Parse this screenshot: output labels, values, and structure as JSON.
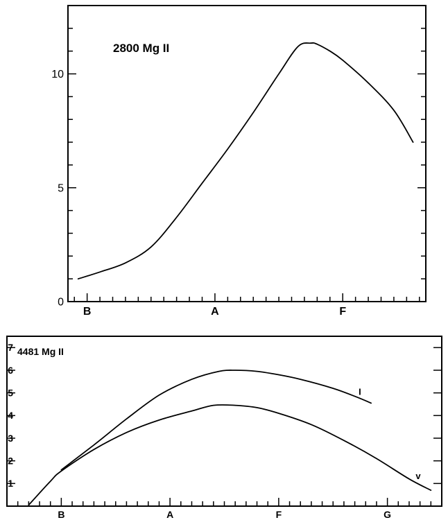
{
  "chart_data": [
    {
      "type": "line",
      "title": "2800 Mg II",
      "xlabel": "",
      "ylabel": "",
      "x_tick_labels": [
        "B",
        "A",
        "F"
      ],
      "x_tick_positions": [
        0,
        1,
        2
      ],
      "xlim": [
        -0.15,
        2.65
      ],
      "ylim": [
        0,
        13
      ],
      "y_ticks": [
        0,
        5,
        10
      ],
      "y_tick_labels": [
        "0",
        "5",
        "10"
      ],
      "series": [
        {
          "name": "",
          "x": [
            -0.07,
            0.1,
            0.3,
            0.5,
            0.7,
            0.9,
            1.1,
            1.3,
            1.5,
            1.65,
            1.75,
            1.8,
            1.9,
            2.0,
            2.2,
            2.4,
            2.55
          ],
          "y": [
            1.0,
            1.3,
            1.7,
            2.4,
            3.7,
            5.2,
            6.7,
            8.3,
            10.0,
            11.2,
            11.35,
            11.3,
            11.0,
            10.6,
            9.6,
            8.4,
            7.0
          ]
        }
      ]
    },
    {
      "type": "line",
      "title": "4481 Mg II",
      "xlabel": "",
      "ylabel": "",
      "x_tick_labels": [
        "B",
        "A",
        "F",
        "G"
      ],
      "x_tick_positions": [
        0,
        1,
        2,
        3
      ],
      "xlim": [
        -0.5,
        3.5
      ],
      "ylim": [
        0,
        7.5
      ],
      "y_ticks": [
        1,
        2,
        3,
        4,
        5,
        6,
        7
      ],
      "y_tick_labels": [
        "1",
        "2",
        "3",
        "4",
        "5",
        "6",
        "7"
      ],
      "series": [
        {
          "name": "I",
          "x": [
            0.0,
            0.3,
            0.6,
            0.9,
            1.2,
            1.45,
            1.6,
            1.8,
            2.0,
            2.2,
            2.5,
            2.7,
            2.85
          ],
          "y": [
            1.6,
            2.7,
            3.85,
            4.9,
            5.6,
            5.95,
            6.0,
            5.95,
            5.8,
            5.6,
            5.2,
            4.85,
            4.55
          ]
        },
        {
          "name": "v",
          "x": [
            -0.3,
            -0.1,
            0.0,
            0.3,
            0.6,
            0.9,
            1.2,
            1.4,
            1.6,
            1.8,
            2.0,
            2.3,
            2.6,
            2.9,
            3.2,
            3.4
          ],
          "y": [
            0.05,
            1.1,
            1.55,
            2.5,
            3.25,
            3.8,
            4.2,
            4.45,
            4.45,
            4.35,
            4.1,
            3.6,
            2.9,
            2.1,
            1.2,
            0.7
          ]
        }
      ]
    }
  ]
}
